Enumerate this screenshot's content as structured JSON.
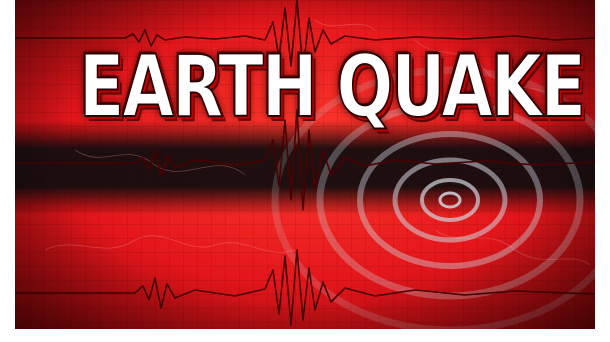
{
  "headline": "EARTH QUAKE",
  "colors": {
    "background_red": "#e3161b",
    "dark_band": "#0c0c0e",
    "seismic_trace": "#4a0000",
    "ring": "#cfd6dd",
    "text_fill": "#ffffff",
    "text_outline": "#5a0000"
  }
}
